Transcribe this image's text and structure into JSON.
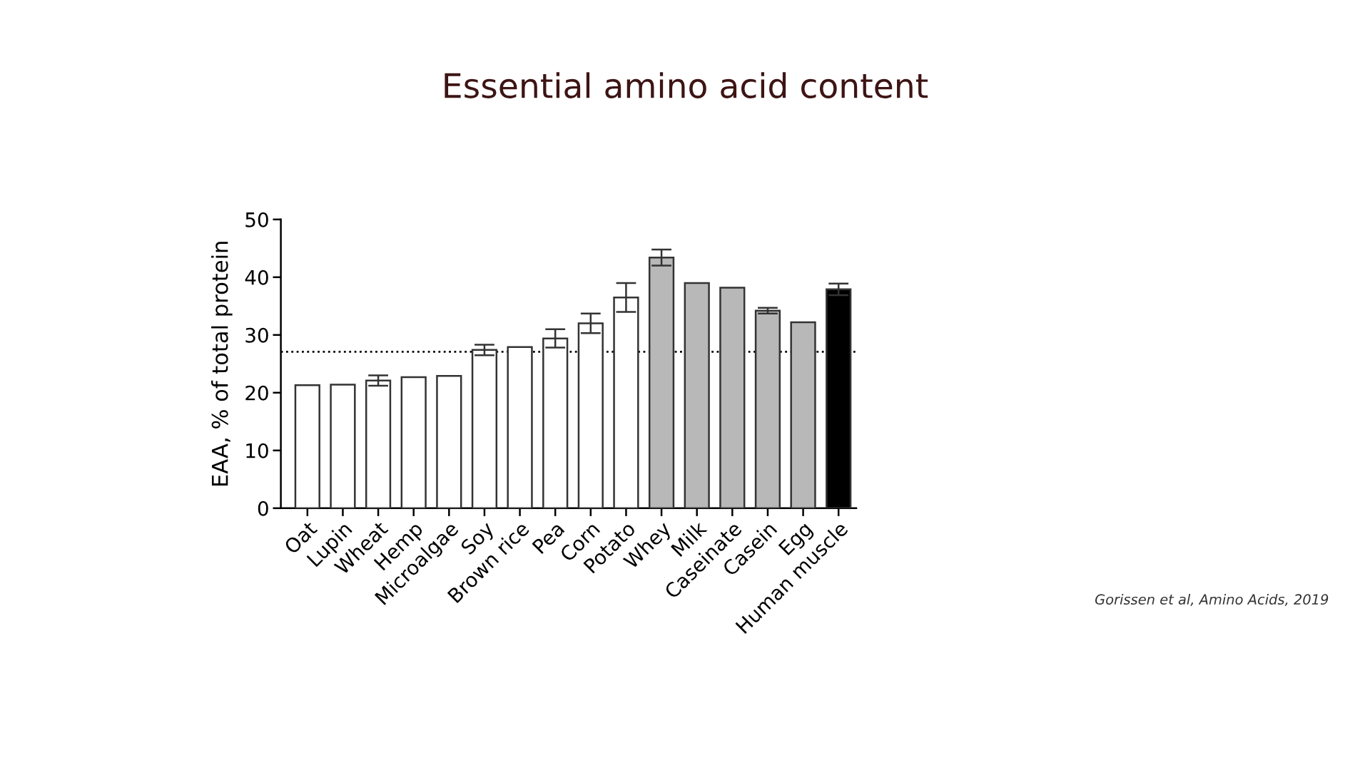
{
  "chart_data": {
    "type": "bar",
    "title": "Essential amino acid content",
    "ylabel": "EAA, % of total protein",
    "categories": [
      "Oat",
      "Lupin",
      "Wheat",
      "Hemp",
      "Microalgae",
      "Soy",
      "Brown rice",
      "Pea",
      "Corn",
      "Potato",
      "Whey",
      "Milk",
      "Caseinate",
      "Casein",
      "Egg",
      "Human muscle"
    ],
    "values": [
      21.3,
      21.4,
      22.1,
      22.7,
      22.9,
      27.4,
      27.9,
      29.4,
      32.0,
      36.5,
      43.4,
      39.0,
      38.2,
      34.2,
      32.2,
      37.9
    ],
    "errors": [
      null,
      null,
      0.9,
      null,
      null,
      0.9,
      null,
      1.6,
      1.7,
      2.5,
      1.4,
      null,
      null,
      0.5,
      null,
      1.0
    ],
    "colors": [
      "#ffffff",
      "#ffffff",
      "#ffffff",
      "#ffffff",
      "#ffffff",
      "#ffffff",
      "#ffffff",
      "#ffffff",
      "#ffffff",
      "#ffffff",
      "#b8b8b8",
      "#b8b8b8",
      "#b8b8b8",
      "#b8b8b8",
      "#b8b8b8",
      "#000000"
    ],
    "ylim": [
      0,
      50
    ],
    "yticks": [
      0,
      10,
      20,
      30,
      40,
      50
    ],
    "grid": false,
    "legend": false,
    "ref_lines": [
      {
        "axis": "y",
        "value": 27.1,
        "label": null,
        "color": "#000000",
        "line_style": "dotted"
      }
    ],
    "annotations": [
      "Gorissen et al, Amino Acids, 2019"
    ]
  }
}
